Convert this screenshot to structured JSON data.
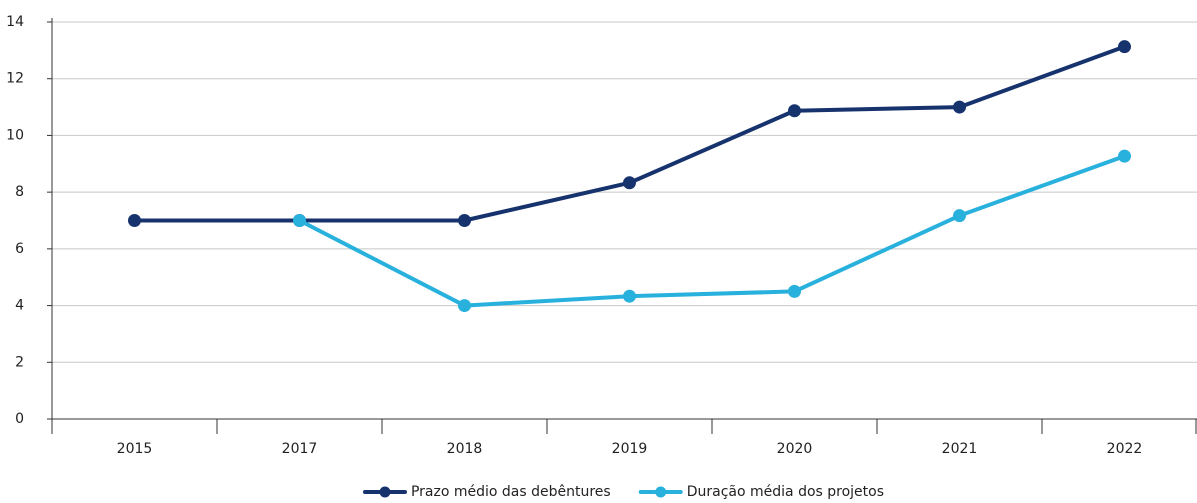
{
  "chart_data": {
    "type": "line",
    "categories": [
      "2015",
      "2017",
      "2018",
      "2019",
      "2020",
      "2021",
      "2022"
    ],
    "series": [
      {
        "name": "Prazo médio das debêntures",
        "color": "#17336e",
        "values": [
          7,
          7,
          7,
          8.33,
          10.87,
          11,
          13.13
        ]
      },
      {
        "name": "Duração média dos projetos",
        "color": "#29b1dd",
        "values": [
          null,
          7,
          4,
          4.33,
          4.5,
          7.17,
          9.27
        ]
      }
    ],
    "ylim": [
      0,
      14
    ],
    "yticks": [
      0,
      2,
      4,
      6,
      8,
      10,
      12,
      14
    ],
    "grid": true,
    "legend": "bottom"
  }
}
